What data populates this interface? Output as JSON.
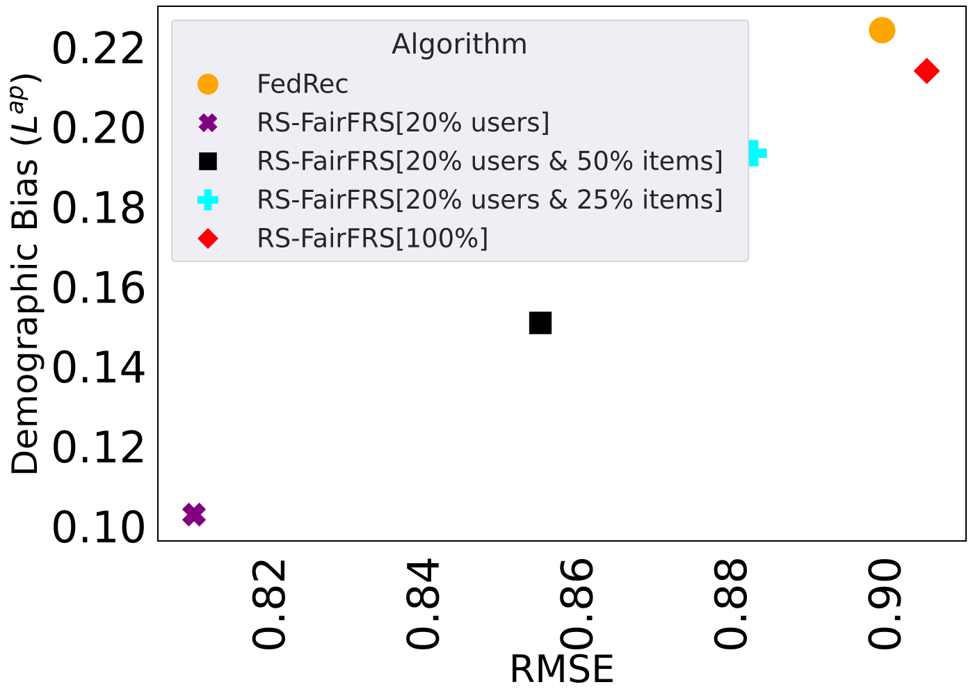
{
  "chart_data": {
    "type": "scatter",
    "xlabel": "RMSE",
    "ylabel": "Demographic Bias (",
    "ylabel_math": "L",
    "ylabel_sup": "ap",
    "ylabel_close": ")",
    "xlim": [
      0.8055,
      0.9105
    ],
    "ylim": [
      0.0966,
      0.2305
    ],
    "x_ticks": [
      0.82,
      0.84,
      0.86,
      0.88,
      0.9
    ],
    "x_tick_labels": [
      "0.82",
      "0.84",
      "0.86",
      "0.88",
      "0.90"
    ],
    "y_ticks": [
      0.1,
      0.12,
      0.14,
      0.16,
      0.18,
      0.2,
      0.22
    ],
    "y_tick_labels": [
      "0.10",
      "0.12",
      "0.14",
      "0.16",
      "0.18",
      "0.20",
      "0.22"
    ],
    "grid": false,
    "legend": {
      "title": "Algorithm",
      "position": "upper-left"
    },
    "series": [
      {
        "name": "FedRec",
        "marker": "circle",
        "color": "#FFA500",
        "x": 0.8996,
        "y": 0.2245
      },
      {
        "name": "RS-FairFRS[20% users]",
        "marker": "x",
        "color": "#800080",
        "x": 0.8102,
        "y": 0.1032
      },
      {
        "name": "RS-FairFRS[20% users & 50% items]",
        "marker": "square",
        "color": "#000000",
        "x": 0.8552,
        "y": 0.1512
      },
      {
        "name": "RS-FairFRS[20% users & 25% items]",
        "marker": "plus",
        "color": "#00FFFF",
        "x": 0.8829,
        "y": 0.1937
      },
      {
        "name": "RS-FairFRS[100%]",
        "marker": "diamond",
        "color": "#FF0000",
        "x": 0.9054,
        "y": 0.2143
      }
    ]
  }
}
